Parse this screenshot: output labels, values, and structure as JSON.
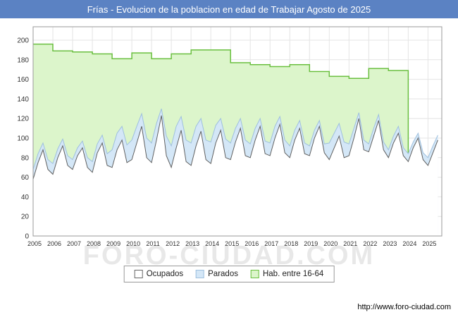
{
  "header": {
    "title": "Frías - Evolucion de la poblacion en edad de Trabajar Agosto de 2025",
    "bg": "#5b82c3"
  },
  "watermark": "FORO-CIUDAD.COM",
  "footer": {
    "url": "http://www.foro-ciudad.com"
  },
  "legend": {
    "items": [
      {
        "label": "Ocupados",
        "fill": "#ffffff",
        "border": "#666666"
      },
      {
        "label": "Parados",
        "fill": "#d4e7f7",
        "border": "#9fc0de"
      },
      {
        "label": "Hab. entre 16-64",
        "fill": "#dcf5cb",
        "border": "#6abf3f"
      }
    ]
  },
  "chart_data": {
    "type": "area",
    "title": "Frías - Evolucion de la poblacion en edad de Trabajar Agosto de 2025",
    "xlabel": "",
    "ylabel": "",
    "ylim": [
      0,
      200
    ],
    "ytick": 20,
    "x_range": [
      2005,
      2025.7
    ],
    "grid": true,
    "legend_position": "bottom",
    "series": [
      {
        "id": "hab",
        "name": "Hab. entre 16-64",
        "type": "step",
        "years": [
          2005,
          2006,
          2007,
          2008,
          2009,
          2010,
          2011,
          2012,
          2013,
          2014,
          2015,
          2016,
          2017,
          2018,
          2019,
          2020,
          2021,
          2022,
          2023
        ],
        "values": [
          196,
          189,
          188,
          186,
          181,
          187,
          181,
          186,
          190,
          190,
          177,
          175,
          173,
          175,
          168,
          163,
          161,
          171,
          169
        ],
        "end_x": 2024,
        "fill": "#dcf5cb",
        "stroke": "#6abf3f"
      },
      {
        "id": "parados",
        "name": "Parados",
        "note": "values are stacked tops (Ocupados + Parados), quarterly",
        "type": "line",
        "x_start": 2005,
        "x_step": 0.25,
        "values": [
          68,
          84,
          95,
          78,
          74,
          89,
          99,
          82,
          78,
          90,
          97,
          80,
          76,
          94,
          103,
          84,
          88,
          105,
          112,
          93,
          98,
          112,
          125,
          100,
          95,
          115,
          130,
          102,
          92,
          112,
          122,
          98,
          95,
          112,
          120,
          98,
          96,
          113,
          120,
          99,
          95,
          110,
          120,
          98,
          94,
          110,
          120,
          97,
          95,
          112,
          122,
          98,
          92,
          108,
          118,
          95,
          92,
          108,
          118,
          94,
          95,
          105,
          115,
          96,
          94,
          110,
          126,
          98,
          94,
          110,
          124,
          96,
          88,
          102,
          112,
          90,
          84,
          96,
          105,
          85,
          80,
          92,
          103
        ],
        "fill": "#d4e7f7",
        "stroke": "#9fc0de"
      },
      {
        "id": "ocupados",
        "name": "Ocupados",
        "type": "line",
        "x_start": 2005,
        "x_step": 0.25,
        "values": [
          58,
          75,
          88,
          68,
          63,
          80,
          92,
          72,
          68,
          82,
          90,
          70,
          65,
          85,
          95,
          72,
          70,
          88,
          98,
          75,
          78,
          95,
          112,
          80,
          75,
          98,
          123,
          82,
          70,
          90,
          108,
          76,
          72,
          92,
          107,
          78,
          74,
          95,
          108,
          80,
          78,
          96,
          110,
          82,
          80,
          98,
          112,
          84,
          82,
          100,
          114,
          85,
          80,
          98,
          110,
          84,
          82,
          100,
          112,
          85,
          78,
          90,
          102,
          80,
          82,
          100,
          120,
          88,
          86,
          102,
          118,
          88,
          80,
          95,
          105,
          82,
          76,
          90,
          100,
          78,
          72,
          85,
          98
        ],
        "fill": "#ffffff",
        "stroke": "#606060"
      }
    ]
  }
}
